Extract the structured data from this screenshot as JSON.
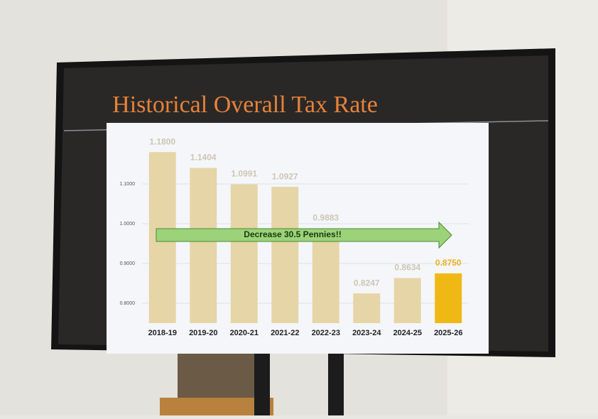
{
  "chart_data": {
    "type": "bar",
    "title": "Historical Overall Tax Rate",
    "categories": [
      "2018-19",
      "2019-20",
      "2020-21",
      "2021-22",
      "2022-23",
      "2023-24",
      "2024-25",
      "2025-26"
    ],
    "values": [
      1.18,
      1.1404,
      1.0991,
      1.0927,
      0.9883,
      0.8247,
      0.8634,
      0.875
    ],
    "value_labels": [
      "1.1800",
      "1.1404",
      "1.0991",
      "1.0927",
      "0.9883",
      "0.8247",
      "0.8634",
      "0.8750"
    ],
    "colors": [
      "#e6d5a6",
      "#e6d5a6",
      "#e6d5a6",
      "#e6d5a6",
      "#e6d5a6",
      "#e6d5a6",
      "#e6d5a6",
      "#efb814"
    ],
    "value_label_colors": [
      "#cfc6b4",
      "#cfc6b4",
      "#cfc6b4",
      "#cfc6b4",
      "#cfc6b4",
      "#cfc6b4",
      "#cfc6b4",
      "#e8b21c"
    ],
    "ylim": [
      0.75,
      1.25
    ],
    "yticks": [
      {
        "value": 0.8,
        "label": "0.8000"
      },
      {
        "value": 0.9,
        "label": "0.9000"
      },
      {
        "value": 1.0,
        "label": "1.0000"
      },
      {
        "value": 1.1,
        "label": "1.1000"
      }
    ],
    "grid": true,
    "annotation": "Decrease 30.5 Pennies!!"
  }
}
